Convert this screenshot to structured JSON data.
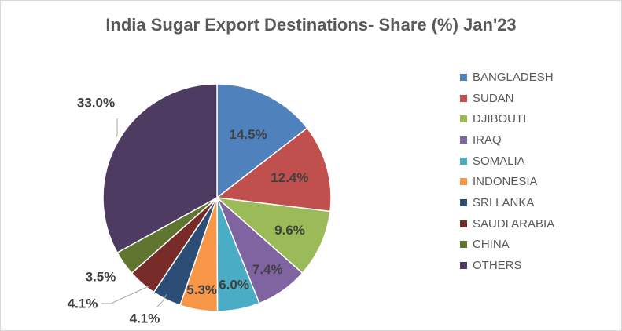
{
  "chart_data": {
    "type": "pie",
    "title": "India Sugar Export Destinations- Share (%) Jan'23",
    "categories": [
      "BANGLADESH",
      "SUDAN",
      "DJIBOUTI",
      "IRAQ",
      "SOMALIA",
      "INDONESIA",
      "SRI LANKA",
      "SAUDI ARABIA",
      "CHINA",
      "OTHERS"
    ],
    "values": [
      14.5,
      12.4,
      9.6,
      7.4,
      6.0,
      5.3,
      4.1,
      4.1,
      3.5,
      33.0
    ],
    "data_labels": [
      "14.5%",
      "12.4%",
      "9.6%",
      "7.4%",
      "6.0%",
      "5.3%",
      "4.1%",
      "4.1%",
      "3.5%",
      "33.0%"
    ],
    "colors": [
      "#4f81bd",
      "#c0504d",
      "#9bbb59",
      "#8064a2",
      "#4bacc6",
      "#f79646",
      "#2c4d75",
      "#772c2a",
      "#5f7530",
      "#4d3b62"
    ],
    "legend_position": "right",
    "start": "12 o'clock, clockwise"
  }
}
